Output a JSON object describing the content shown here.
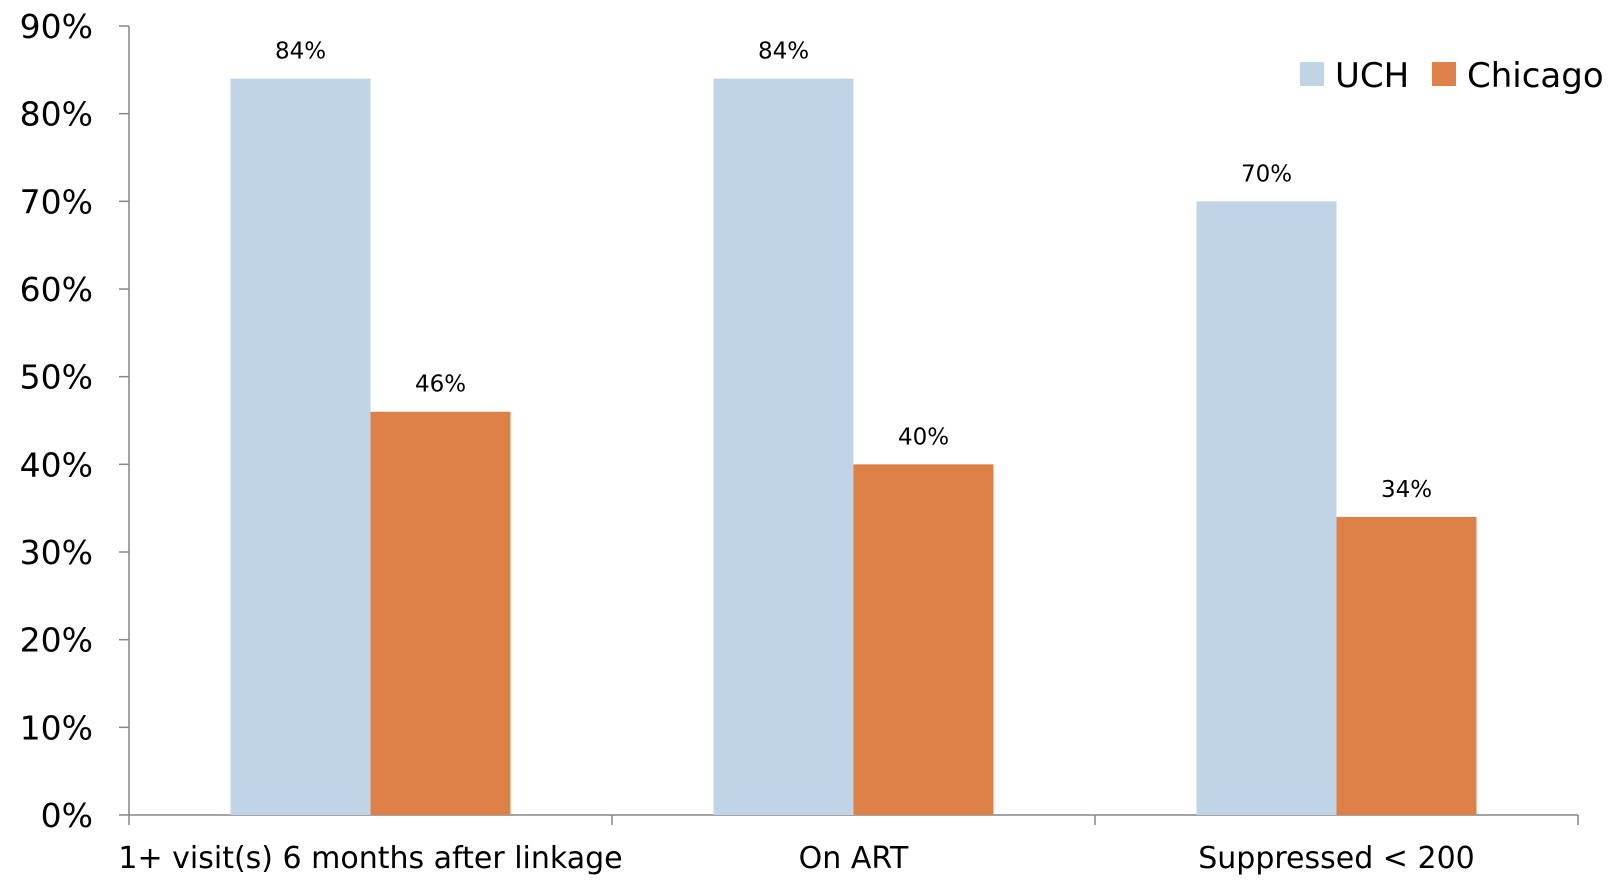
{
  "chart_data": {
    "type": "bar",
    "title": "",
    "xlabel": "",
    "ylabel": "",
    "categories": [
      "1+ visit(s) 6 months after linkage",
      "On ART",
      "Suppressed < 200"
    ],
    "series": [
      {
        "name": "UCH",
        "values": [
          84,
          84,
          70
        ],
        "labels": [
          "84%",
          "84%",
          "70%"
        ],
        "color": "#c0d4e5"
      },
      {
        "name": "Chicago",
        "values": [
          46,
          40,
          34
        ],
        "labels": [
          "46%",
          "40%",
          "34%"
        ],
        "color": "#de8149"
      }
    ],
    "ylim": [
      0,
      90
    ],
    "yticks": [
      0,
      10,
      20,
      30,
      40,
      50,
      60,
      70,
      80,
      90
    ],
    "ytick_labels": [
      "0%",
      "10%",
      "20%",
      "30%",
      "40%",
      "50%",
      "60%",
      "70%",
      "80%",
      "90%"
    ],
    "grid": false,
    "legend_position": "top-right",
    "axis_color": "#868686"
  }
}
